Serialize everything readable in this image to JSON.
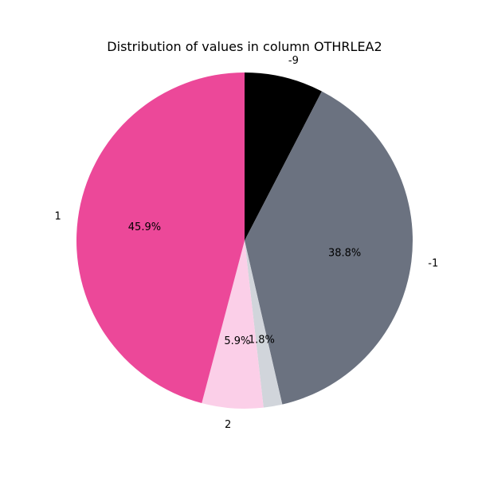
{
  "chart_data": {
    "type": "pie",
    "title": "Distribution of values in column OTHRLEA2",
    "start_angle_deg": 90,
    "direction": "clockwise",
    "legend": "none",
    "slices": [
      {
        "label": "-9",
        "value": 7.6,
        "pct_label": "",
        "color": "#000000"
      },
      {
        "label": "-1",
        "value": 38.8,
        "pct_label": "38.8%",
        "color": "#6b7280"
      },
      {
        "label": "",
        "value": 1.8,
        "pct_label": "1.8%",
        "color": "#d1d5db"
      },
      {
        "label": "2",
        "value": 5.9,
        "pct_label": "5.9%",
        "color": "#fbcfe8"
      },
      {
        "label": "1",
        "value": 45.9,
        "pct_label": "45.9%",
        "color": "#ec4899"
      }
    ]
  }
}
